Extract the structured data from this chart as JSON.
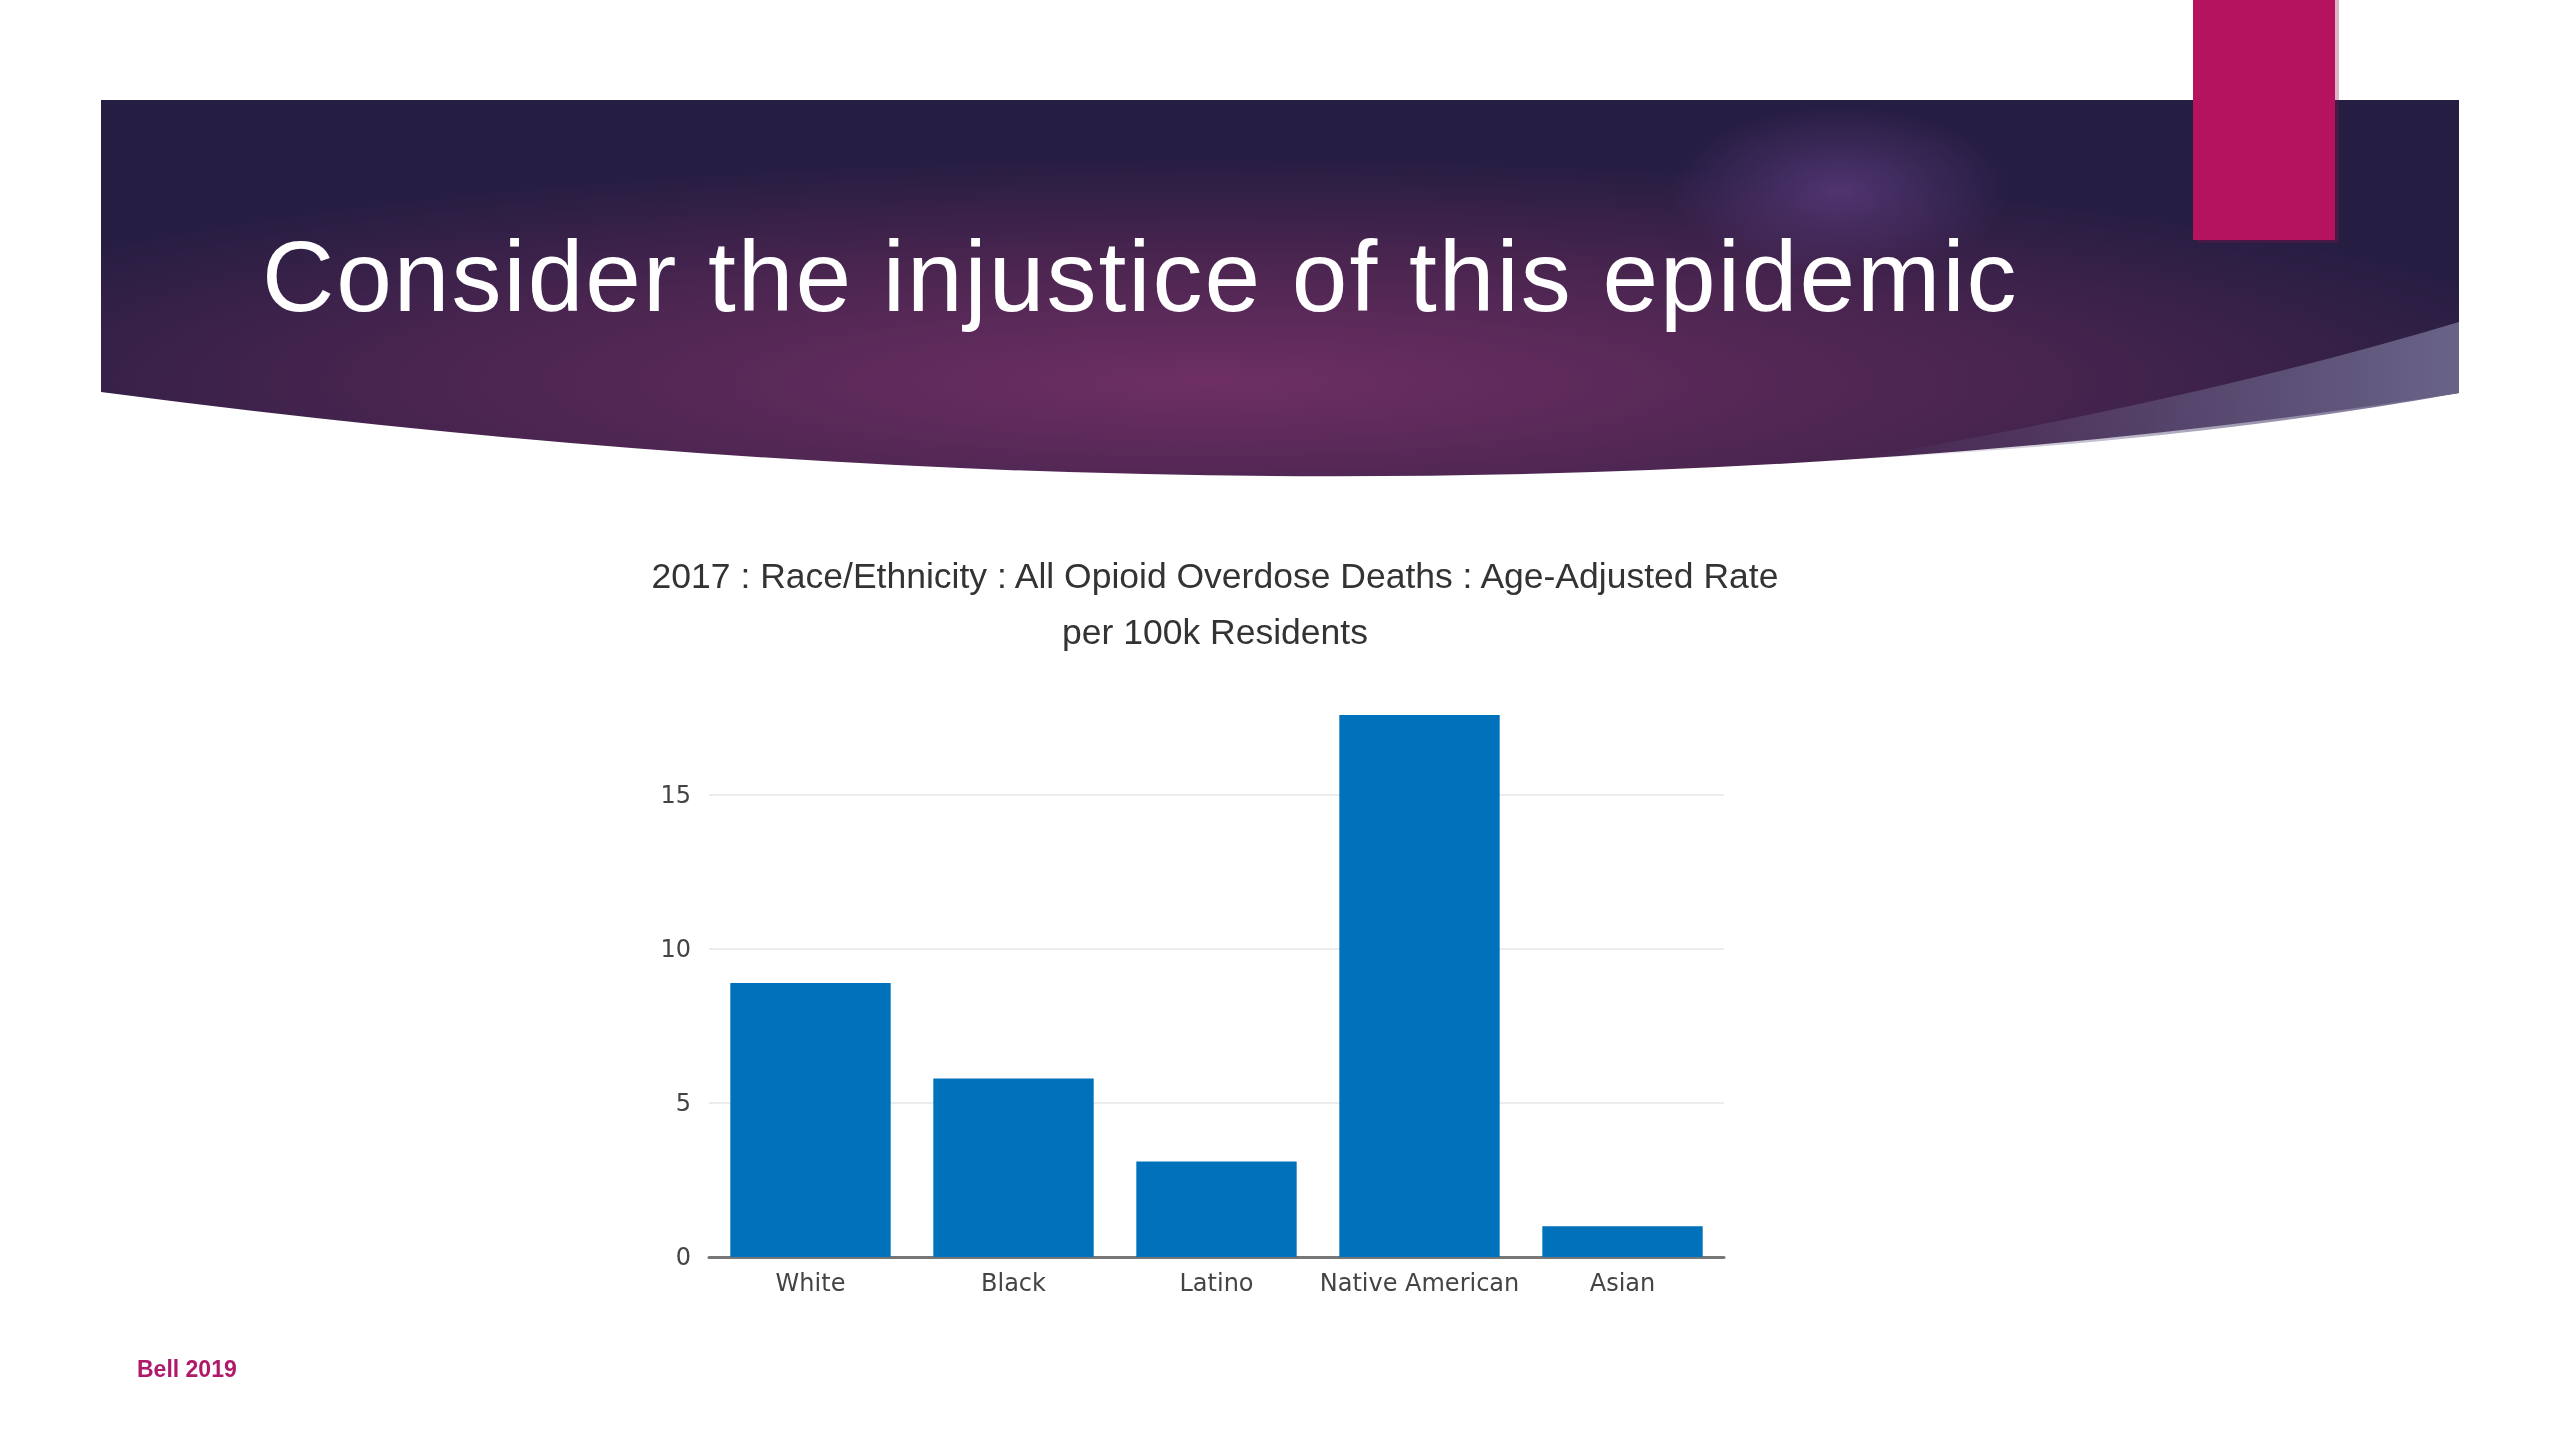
{
  "chart_data": {
    "type": "bar",
    "title": "Consider the injustice of this epidemic",
    "subtitle": "2017 : Race/Ethnicity : All Opioid Overdose Deaths : Age-Adjusted Rate per 100k Residents",
    "categories": [
      "White",
      "Black",
      "Latino",
      "Native American",
      "Asian"
    ],
    "values": [
      8.9,
      5.8,
      3.1,
      17.6,
      1.0
    ],
    "color": "#0071bb",
    "ylim": [
      0,
      17.6
    ],
    "yticks": [
      0,
      5,
      10,
      15
    ],
    "grid": "y",
    "annotations": [
      "Bell 2019"
    ]
  }
}
